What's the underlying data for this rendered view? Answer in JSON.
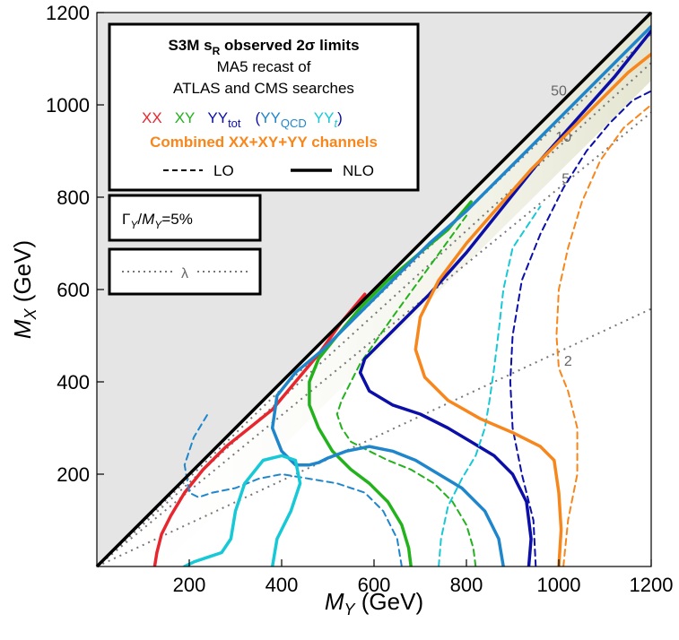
{
  "chart_data": {
    "type": "line",
    "x_label_var": "M",
    "x_label_sub": "Y",
    "x_label_unit": " (GeV)",
    "y_label_var": "M",
    "y_label_sub": "X",
    "y_label_unit": " (GeV)",
    "xlim": [
      0,
      1200
    ],
    "ylim": [
      0,
      1200
    ],
    "x_ticks": [
      "200",
      "400",
      "600",
      "800",
      "1000",
      "1200"
    ],
    "y_ticks": [
      "200",
      "400",
      "600",
      "800",
      "1000",
      "1200"
    ],
    "x_tick_values": [
      200,
      400,
      600,
      800,
      1000,
      1200
    ],
    "y_tick_values": [
      200,
      400,
      600,
      800,
      1000,
      1200
    ],
    "legend": {
      "title_main": "S3M s",
      "title_sub": "R",
      "title_rest": " observed 2σ limits",
      "line2": "MA5 recast of",
      "line3": "ATLAS and CMS searches",
      "xx": "XX",
      "xy": "XY",
      "yytot_main": "YY",
      "yytot_sub": "tot",
      "paren_open": "(",
      "yyqcd_main": "YY",
      "yyqcd_sub": "QCD",
      "yyt_main": "YY",
      "yyt_sub": "t",
      "paren_close": ")",
      "combined": "Combined XX+XY+YY channels",
      "lo": "LO",
      "nlo": "NLO"
    },
    "width_box": {
      "gamma": "Γ",
      "gamma_sub": "Y",
      "slash": "/",
      "m": "M",
      "m_sub": "Y",
      "value": "=5%"
    },
    "lambda_box": {
      "symbol": "λ"
    },
    "colors": {
      "xx": "#e8262e",
      "xy": "#22b21c",
      "yytot": "#0b0fa8",
      "yyqcd": "#1f86cc",
      "yyt": "#17c9d6",
      "combined": "#f7871c",
      "diagonal": "#000000",
      "forbidden": "#e5e5e5",
      "lambda": "#777777"
    },
    "lambda_lines": [
      {
        "label": "50",
        "slope": 1.04,
        "label_at": [
          1000,
          1020
        ]
      },
      {
        "label": "10",
        "slope": 1.1,
        "label_at": [
          1010,
          920
        ]
      },
      {
        "label": "5",
        "slope": 1.22,
        "label_at": [
          1015,
          830
        ]
      },
      {
        "label": "2",
        "slope": 2.15,
        "label_at": [
          1020,
          435
        ]
      }
    ],
    "series": [
      {
        "name": "XX NLO",
        "color_key": "xx",
        "style": "solid",
        "x": [
          125,
          130,
          140,
          160,
          190,
          230,
          280,
          330,
          380,
          430,
          480,
          530,
          580
        ],
        "y": [
          0,
          30,
          70,
          110,
          160,
          210,
          260,
          300,
          340,
          400,
          460,
          530,
          590
        ]
      },
      {
        "name": "XY NLO",
        "color_key": "xy",
        "style": "solid",
        "x": [
          680,
          675,
          660,
          630,
          590,
          550,
          510,
          480,
          460,
          460,
          480,
          520,
          570,
          630,
          700,
          760,
          810
        ],
        "y": [
          0,
          40,
          90,
          140,
          180,
          210,
          250,
          300,
          350,
          400,
          450,
          500,
          560,
          620,
          680,
          730,
          790
        ]
      },
      {
        "name": "XY LO",
        "color_key": "xy",
        "style": "dashed",
        "x": [
          820,
          815,
          800,
          770,
          730,
          680,
          630,
          590,
          550,
          530,
          520,
          530,
          570,
          640,
          720,
          800
        ],
        "y": [
          0,
          40,
          90,
          140,
          180,
          210,
          230,
          250,
          270,
          300,
          330,
          360,
          440,
          540,
          650,
          760
        ]
      },
      {
        "name": "YYtot NLO",
        "color_key": "yytot",
        "style": "solid",
        "x": [
          935,
          940,
          930,
          900,
          860,
          810,
          760,
          700,
          640,
          590,
          570,
          580,
          640,
          720,
          800,
          880,
          960,
          1040,
          1120,
          1200
        ],
        "y": [
          0,
          60,
          140,
          200,
          240,
          270,
          300,
          330,
          350,
          380,
          420,
          450,
          510,
          590,
          680,
          780,
          880,
          970,
          1060,
          1160
        ]
      },
      {
        "name": "YYtot LO",
        "color_key": "yytot",
        "style": "dashed",
        "x": [
          950,
          945,
          920,
          900,
          895,
          900,
          920,
          960,
          1010,
          1060,
          1110,
          1160,
          1200
        ],
        "y": [
          0,
          100,
          200,
          300,
          400,
          500,
          620,
          720,
          820,
          900,
          960,
          1010,
          1030
        ]
      },
      {
        "name": "YYQCD NLO",
        "color_key": "yyqcd",
        "style": "solid",
        "x": [
          880,
          870,
          840,
          790,
          740,
          690,
          640,
          590,
          540,
          500,
          480,
          460,
          430,
          400,
          380,
          390,
          430,
          490,
          560,
          640,
          720,
          800,
          880,
          960,
          1040,
          1120,
          1200
        ],
        "y": [
          0,
          60,
          120,
          170,
          200,
          230,
          250,
          260,
          250,
          235,
          225,
          220,
          220,
          250,
          300,
          370,
          420,
          470,
          540,
          620,
          700,
          770,
          850,
          930,
          1010,
          1090,
          1170
        ]
      },
      {
        "name": "YYQCD LO",
        "color_key": "yyqcd",
        "style": "dashed",
        "x": [
          660,
          650,
          620,
          580,
          520,
          460,
          400,
          350,
          300,
          250,
          220,
          200,
          190,
          210,
          240
        ],
        "y": [
          0,
          60,
          120,
          160,
          180,
          190,
          200,
          190,
          170,
          160,
          150,
          160,
          220,
          280,
          330
        ]
      },
      {
        "name": "YYt NLO",
        "color_key": "yyt",
        "style": "solid",
        "x": [
          380,
          390,
          420,
          440,
          430,
          400,
          360,
          320,
          300,
          290,
          270,
          240,
          210,
          190
        ],
        "y": [
          0,
          60,
          120,
          180,
          230,
          240,
          230,
          180,
          120,
          60,
          30,
          20,
          10,
          0
        ]
      },
      {
        "name": "YYt LO",
        "color_key": "yyt",
        "style": "dashed",
        "x": [
          740,
          745,
          760,
          790,
          820,
          840,
          850,
          860,
          870,
          880,
          900,
          960
        ],
        "y": [
          0,
          60,
          130,
          190,
          240,
          300,
          360,
          430,
          510,
          600,
          690,
          780
        ]
      },
      {
        "name": "Combined NLO",
        "color_key": "combined",
        "style": "solid",
        "x": [
          1000,
          1005,
          1000,
          990,
          960,
          900,
          830,
          760,
          710,
          690,
          700,
          740,
          800,
          870,
          940,
          1010,
          1080,
          1150,
          1200
        ],
        "y": [
          0,
          80,
          160,
          230,
          260,
          290,
          320,
          360,
          410,
          470,
          540,
          620,
          700,
          780,
          860,
          930,
          1000,
          1070,
          1110
        ]
      },
      {
        "name": "Combined LO",
        "color_key": "combined",
        "style": "dashed",
        "x": [
          1010,
          1020,
          1040,
          1040,
          1020,
          1000,
          995,
          1000,
          1020,
          1050,
          1090,
          1140,
          1200
        ],
        "y": [
          0,
          100,
          200,
          300,
          380,
          430,
          500,
          600,
          690,
          790,
          880,
          950,
          1000
        ]
      }
    ]
  }
}
